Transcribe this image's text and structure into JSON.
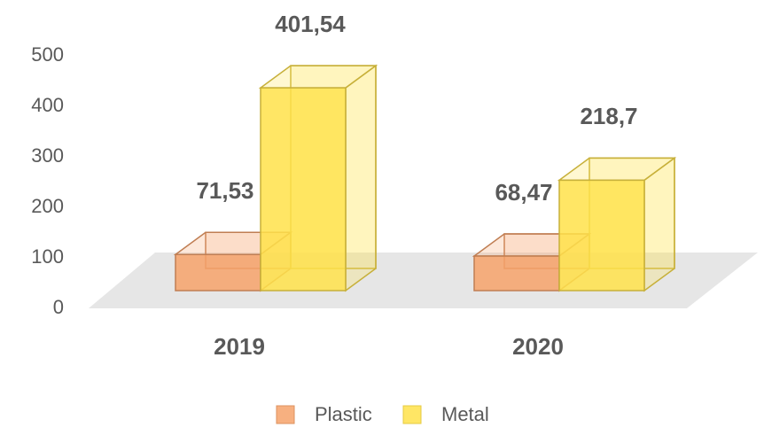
{
  "chart_data": {
    "type": "bar3d",
    "categories": [
      "2019",
      "2020"
    ],
    "series": [
      {
        "name": "Plastic",
        "color": "#f6a26a",
        "values": [
          71.53,
          68.47
        ],
        "value_labels": [
          "71,53",
          "68,47"
        ]
      },
      {
        "name": "Metal",
        "color": "#ffe24a",
        "values": [
          401.54,
          218.7
        ],
        "value_labels": [
          "401,54",
          "218,7"
        ]
      }
    ],
    "ylim": [
      0,
      500
    ],
    "yticks": [
      0,
      100,
      200,
      300,
      400,
      500
    ]
  }
}
